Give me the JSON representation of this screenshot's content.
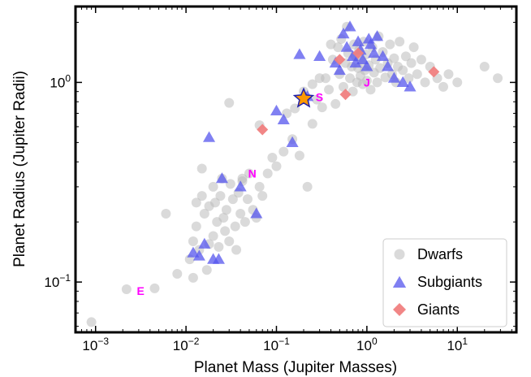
{
  "chart_data": {
    "type": "scatter",
    "xlabel": "Planet Mass (Jupiter Masses)",
    "ylabel": "Planet Radius (Jupiter Radii)",
    "xscale": "log",
    "yscale": "log",
    "xlim": [
      0.0006,
      45
    ],
    "ylim": [
      0.056,
      2.4
    ],
    "x_ticks": [
      {
        "value": 0.001,
        "base": "10",
        "exp": "−3"
      },
      {
        "value": 0.01,
        "base": "10",
        "exp": "−2"
      },
      {
        "value": 0.1,
        "base": "10",
        "exp": "−1"
      },
      {
        "value": 1,
        "base": "10",
        "exp": "0"
      },
      {
        "value": 10,
        "base": "10",
        "exp": "1"
      }
    ],
    "y_ticks": [
      {
        "value": 0.1,
        "base": "10",
        "exp": "−1"
      },
      {
        "value": 1,
        "base": "10",
        "exp": "0"
      }
    ],
    "legend_position": "lower-right",
    "series": [
      {
        "name": "Dwarfs",
        "marker": "circle",
        "color": "#bbbbbb",
        "points": [
          [
            0.0009,
            0.063
          ],
          [
            0.0022,
            0.092
          ],
          [
            0.0045,
            0.093
          ],
          [
            0.006,
            0.22
          ],
          [
            0.008,
            0.11
          ],
          [
            0.011,
            0.13
          ],
          [
            0.012,
            0.105
          ],
          [
            0.012,
            0.16
          ],
          [
            0.013,
            0.25
          ],
          [
            0.013,
            0.19
          ],
          [
            0.014,
            0.145
          ],
          [
            0.015,
            0.37
          ],
          [
            0.015,
            0.27
          ],
          [
            0.016,
            0.22
          ],
          [
            0.017,
            0.115
          ],
          [
            0.018,
            0.24
          ],
          [
            0.018,
            0.155
          ],
          [
            0.02,
            0.3
          ],
          [
            0.02,
            0.17
          ],
          [
            0.021,
            0.25
          ],
          [
            0.022,
            0.2
          ],
          [
            0.023,
            0.15
          ],
          [
            0.024,
            0.27
          ],
          [
            0.025,
            0.33
          ],
          [
            0.026,
            0.21
          ],
          [
            0.027,
            0.18
          ],
          [
            0.028,
            0.23
          ],
          [
            0.03,
            0.16
          ],
          [
            0.031,
            0.31
          ],
          [
            0.033,
            0.26
          ],
          [
            0.035,
            0.19
          ],
          [
            0.036,
            0.145
          ],
          [
            0.038,
            0.28
          ],
          [
            0.04,
            0.22
          ],
          [
            0.042,
            0.33
          ],
          [
            0.045,
            0.2
          ],
          [
            0.048,
            0.26
          ],
          [
            0.05,
            0.35
          ],
          [
            0.055,
            0.23
          ],
          [
            0.06,
            0.21
          ],
          [
            0.065,
            0.3
          ],
          [
            0.07,
            0.27
          ],
          [
            0.03,
            0.79
          ],
          [
            0.042,
            0.32
          ],
          [
            0.065,
            0.61
          ],
          [
            0.08,
            0.35
          ],
          [
            0.09,
            0.42
          ],
          [
            0.1,
            0.38
          ],
          [
            0.12,
            0.45
          ],
          [
            0.13,
            0.7
          ],
          [
            0.15,
            0.52
          ],
          [
            0.16,
            0.74
          ],
          [
            0.18,
            0.43
          ],
          [
            0.22,
            0.3
          ],
          [
            0.25,
            0.62
          ],
          [
            0.28,
            0.82
          ],
          [
            0.32,
            0.75
          ],
          [
            0.35,
            1.05
          ],
          [
            0.38,
            0.92
          ],
          [
            0.42,
            1.3
          ],
          [
            0.45,
            0.78
          ],
          [
            0.48,
            1.5
          ],
          [
            0.5,
            1.1
          ],
          [
            0.52,
            1.65
          ],
          [
            0.55,
            0.95
          ],
          [
            0.58,
            1.25
          ],
          [
            0.6,
            1.9
          ],
          [
            0.62,
            1.4
          ],
          [
            0.65,
            1.05
          ],
          [
            0.68,
            1.2
          ],
          [
            0.7,
            0.9
          ],
          [
            0.72,
            1.55
          ],
          [
            0.75,
            1.35
          ],
          [
            0.78,
            1.0
          ],
          [
            0.8,
            1.18
          ],
          [
            0.82,
            1.45
          ],
          [
            0.85,
            1.08
          ],
          [
            0.88,
            1.28
          ],
          [
            0.9,
            0.98
          ],
          [
            0.92,
            1.6
          ],
          [
            0.95,
            1.15
          ],
          [
            0.98,
            1.38
          ],
          [
            1.0,
            1.02
          ],
          [
            1.05,
            1.22
          ],
          [
            1.1,
            0.92
          ],
          [
            1.15,
            1.5
          ],
          [
            1.2,
            1.12
          ],
          [
            1.25,
            1.3
          ],
          [
            1.3,
            1.0
          ],
          [
            1.35,
            1.7
          ],
          [
            1.4,
            1.18
          ],
          [
            1.5,
            1.42
          ],
          [
            1.6,
            1.06
          ],
          [
            1.7,
            1.25
          ],
          [
            1.8,
            1.55
          ],
          [
            1.9,
            1.1
          ],
          [
            2.0,
            1.32
          ],
          [
            2.1,
            1.0
          ],
          [
            2.2,
            1.2
          ],
          [
            2.3,
            1.6
          ],
          [
            2.5,
            1.15
          ],
          [
            2.7,
            1.35
          ],
          [
            2.9,
            1.05
          ],
          [
            3.1,
            1.25
          ],
          [
            3.3,
            1.5
          ],
          [
            3.6,
            1.1
          ],
          [
            4.0,
            1.3
          ],
          [
            4.4,
            1.0
          ],
          [
            5.0,
            1.2
          ],
          [
            6.0,
            1.05
          ],
          [
            7.0,
            0.95
          ],
          [
            8.0,
            1.1
          ],
          [
            10.0,
            1.0
          ],
          [
            20.0,
            1.2
          ],
          [
            28.0,
            1.05
          ],
          [
            0.4,
            1.55
          ],
          [
            0.3,
            1.05
          ],
          [
            0.25,
            0.98
          ],
          [
            0.2,
            0.9
          ]
        ]
      },
      {
        "name": "Subgiants",
        "marker": "triangle",
        "color": "#5555ee",
        "points": [
          [
            0.012,
            0.14
          ],
          [
            0.014,
            0.135
          ],
          [
            0.016,
            0.155
          ],
          [
            0.02,
            0.13
          ],
          [
            0.023,
            0.13
          ],
          [
            0.018,
            0.53
          ],
          [
            0.025,
            0.33
          ],
          [
            0.04,
            0.3
          ],
          [
            0.06,
            0.22
          ],
          [
            0.1,
            0.72
          ],
          [
            0.12,
            0.65
          ],
          [
            0.15,
            0.5
          ],
          [
            0.18,
            1.38
          ],
          [
            0.22,
            0.85
          ],
          [
            0.3,
            1.35
          ],
          [
            0.45,
            1.25
          ],
          [
            0.5,
            1.15
          ],
          [
            0.6,
            1.5
          ],
          [
            0.7,
            1.35
          ],
          [
            0.75,
            1.25
          ],
          [
            0.8,
            1.6
          ],
          [
            0.85,
            1.45
          ],
          [
            0.9,
            1.3
          ],
          [
            1.0,
            1.2
          ],
          [
            1.1,
            1.55
          ],
          [
            1.2,
            1.4
          ],
          [
            1.3,
            1.7
          ],
          [
            1.5,
            1.35
          ],
          [
            1.7,
            1.2
          ],
          [
            2.0,
            1.05
          ],
          [
            2.5,
            1.0
          ],
          [
            3.0,
            0.95
          ],
          [
            0.55,
            1.75
          ],
          [
            0.65,
            1.9
          ],
          [
            1.05,
            1.65
          ]
        ]
      },
      {
        "name": "Giants",
        "marker": "diamond",
        "color": "#f08080",
        "points": [
          [
            0.07,
            0.58
          ],
          [
            0.58,
            0.87
          ],
          [
            0.5,
            1.3
          ],
          [
            0.8,
            1.4
          ],
          [
            5.5,
            1.13
          ]
        ]
      }
    ],
    "reference_planets": [
      {
        "label": "E",
        "x": 0.00315,
        "y": 0.0903
      },
      {
        "label": "N",
        "x": 0.054,
        "y": 0.35
      },
      {
        "label": "S",
        "x": 0.299,
        "y": 0.843
      },
      {
        "label": "J",
        "x": 1.0,
        "y": 1.0
      }
    ],
    "highlight": {
      "x": 0.2,
      "y": 0.83,
      "marker": "star",
      "fill": "#ff9900",
      "stroke": "#2222aa"
    }
  }
}
